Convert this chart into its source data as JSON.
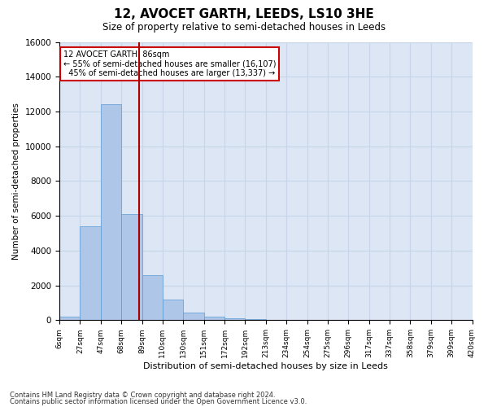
{
  "title": "12, AVOCET GARTH, LEEDS, LS10 3HE",
  "subtitle": "Size of property relative to semi-detached houses in Leeds",
  "xlabel": "Distribution of semi-detached houses by size in Leeds",
  "ylabel": "Number of semi-detached properties",
  "property_label": "12 AVOCET GARTH: 86sqm",
  "pct_smaller": 55,
  "pct_larger": 45,
  "count_smaller": 16107,
  "count_larger": 13337,
  "bin_labels": [
    "6sqm",
    "27sqm",
    "47sqm",
    "68sqm",
    "89sqm",
    "110sqm",
    "130sqm",
    "151sqm",
    "172sqm",
    "192sqm",
    "213sqm",
    "234sqm",
    "254sqm",
    "275sqm",
    "296sqm",
    "317sqm",
    "337sqm",
    "358sqm",
    "379sqm",
    "399sqm",
    "420sqm"
  ],
  "bar_heights": [
    200,
    5400,
    12400,
    6100,
    2600,
    1200,
    450,
    200,
    100,
    50,
    20,
    0,
    0,
    0,
    0,
    0,
    0,
    0,
    0,
    0
  ],
  "bar_color": "#aec6e8",
  "bar_edge_color": "#5a9bd4",
  "vline_color": "#aa0000",
  "vline_bin": 3.5,
  "ylim": [
    0,
    16000
  ],
  "yticks": [
    0,
    2000,
    4000,
    6000,
    8000,
    10000,
    12000,
    14000,
    16000
  ],
  "grid_color": "#c8d4e8",
  "background_color": "#dce6f5",
  "footer_line1": "Contains HM Land Registry data © Crown copyright and database right 2024.",
  "footer_line2": "Contains public sector information licensed under the Open Government Licence v3.0."
}
